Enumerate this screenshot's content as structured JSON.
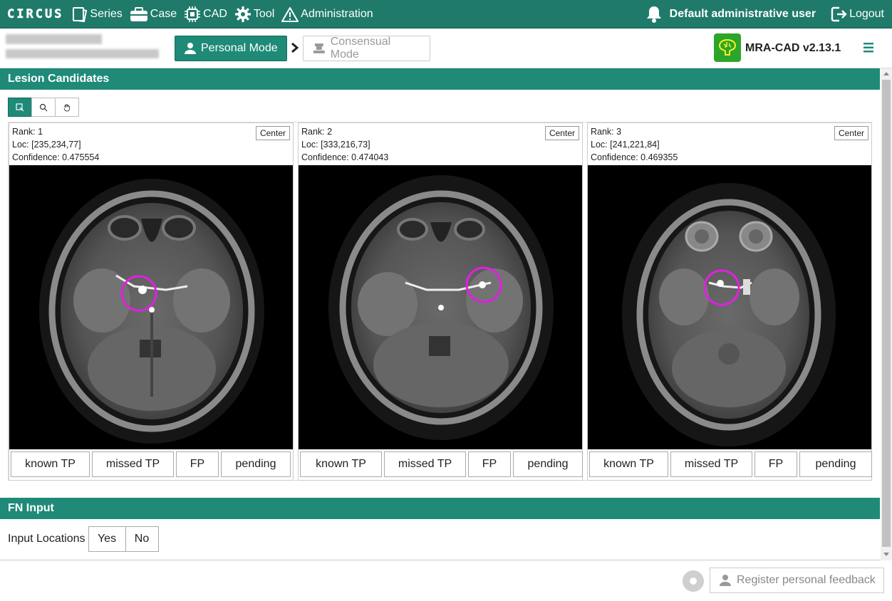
{
  "app": {
    "brand": "CIRCUS",
    "nav": [
      {
        "label": "Series",
        "icon": "series-icon"
      },
      {
        "label": "Case",
        "icon": "case-icon"
      },
      {
        "label": "CAD",
        "icon": "cad-chip-icon"
      },
      {
        "label": "Tool",
        "icon": "tool-gear-icon"
      },
      {
        "label": "Administration",
        "icon": "warning-triangle-icon"
      }
    ],
    "user": "Default administrative user",
    "logout": "Logout"
  },
  "header": {
    "personal_mode": "Personal Mode",
    "consensual_mode": "Consensual Mode",
    "plugin_name": "MRA-CAD v2.13.1"
  },
  "lesion": {
    "title": "Lesion Candidates",
    "center_label": "Center",
    "feedback_options": [
      "known TP",
      "missed TP",
      "FP",
      "pending"
    ],
    "candidates": [
      {
        "rank": "Rank: 1",
        "loc": "Loc: [235,234,77]",
        "confidence": "Confidence: 0.475554"
      },
      {
        "rank": "Rank: 2",
        "loc": "Loc: [333,216,73]",
        "confidence": "Confidence: 0.474043"
      },
      {
        "rank": "Rank: 3",
        "loc": "Loc: [241,221,84]",
        "confidence": "Confidence: 0.469355"
      }
    ]
  },
  "fn": {
    "title": "FN Input",
    "label": "Input Locations",
    "yes": "Yes",
    "no": "No"
  },
  "footer": {
    "register": "Register personal feedback"
  },
  "colors": {
    "accent": "#1f8a78",
    "marker": "#e020e0",
    "plugin_bg": "#2da52a"
  }
}
